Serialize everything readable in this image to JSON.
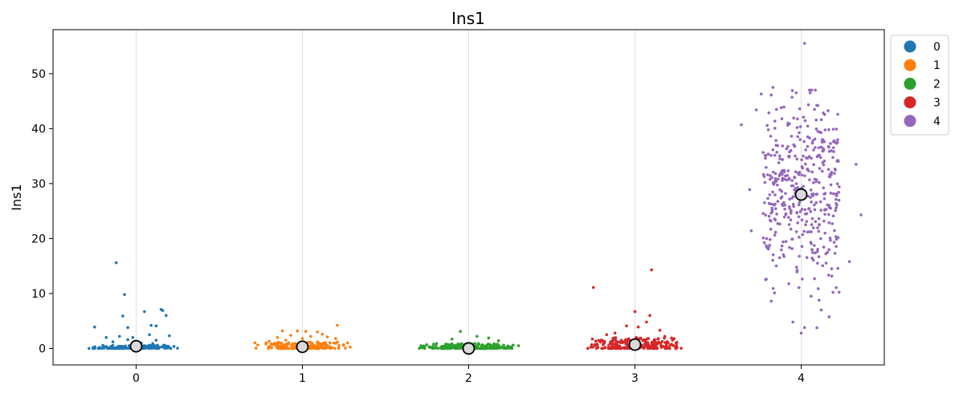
{
  "chart_data": {
    "type": "scatter",
    "title": "Ins1",
    "xlabel": "",
    "ylabel": "Ins1",
    "categories": [
      "0",
      "1",
      "2",
      "3",
      "4"
    ],
    "x_ticks": [
      "0",
      "1",
      "2",
      "3",
      "4"
    ],
    "y_ticks": [
      "0",
      "10",
      "20",
      "30",
      "40",
      "50"
    ],
    "ylim": [
      -3,
      58
    ],
    "xlim": [
      -0.5,
      4.5
    ],
    "grid": "vertical lines at categories",
    "legend_placement": "outside-right-top",
    "series": [
      {
        "name": "0",
        "color": "#1f77b4",
        "mean": 0.4,
        "points": [
          [
            -0.12,
            15.6
          ],
          [
            -0.07,
            9.8
          ],
          [
            -0.25,
            3.9
          ],
          [
            0.05,
            6.7
          ],
          [
            0.15,
            7.1
          ],
          [
            0.16,
            6.9
          ],
          [
            0.18,
            6.0
          ],
          [
            0.09,
            4.2
          ],
          [
            0.12,
            4.1
          ],
          [
            -0.08,
            5.9
          ],
          [
            -0.05,
            3.8
          ],
          [
            -0.18,
            2.0
          ],
          [
            -0.1,
            2.2
          ],
          [
            0.08,
            2.5
          ],
          [
            -0.02,
            2.0
          ],
          [
            0.2,
            2.3
          ],
          [
            0.12,
            1.5
          ],
          [
            -0.14,
            1.2
          ],
          [
            0.03,
            1.0
          ],
          [
            -0.05,
            1.6
          ],
          [
            0.1,
            0.9
          ]
        ],
        "cluster": {
          "n": 140,
          "spread_x": 0.33,
          "base_max": 0.6
        }
      },
      {
        "name": "1",
        "color": "#ff7f0e",
        "mean": 0.3,
        "points": [
          [
            1.21,
            4.2
          ],
          [
            0.88,
            3.2
          ],
          [
            0.97,
            3.2
          ],
          [
            1.02,
            3.1
          ],
          [
            1.09,
            3.0
          ],
          [
            1.12,
            2.6
          ],
          [
            0.93,
            2.4
          ],
          [
            1.15,
            2.1
          ],
          [
            0.85,
            2.0
          ],
          [
            1.05,
            2.2
          ],
          [
            1.2,
            1.8
          ],
          [
            0.8,
            1.3
          ],
          [
            0.9,
            1.5
          ],
          [
            1.0,
            1.8
          ]
        ],
        "cluster": {
          "n": 180,
          "spread_x": 0.3,
          "base_max": 1.2
        }
      },
      {
        "name": "2",
        "color": "#2ca02c",
        "mean": 0.0,
        "points": [
          [
            1.95,
            3.1
          ],
          [
            2.05,
            2.2
          ],
          [
            2.12,
            1.9
          ],
          [
            1.9,
            1.7
          ],
          [
            2.18,
            1.4
          ],
          [
            2.3,
            0.5
          ]
        ],
        "cluster": {
          "n": 220,
          "spread_x": 0.33,
          "base_max": 0.9
        }
      },
      {
        "name": "3",
        "color": "#d62728",
        "mean": 0.7,
        "points": [
          [
            3.1,
            14.3
          ],
          [
            2.75,
            11.1
          ],
          [
            3.09,
            6.0
          ],
          [
            3.0,
            6.7
          ],
          [
            3.07,
            4.8
          ],
          [
            2.95,
            4.1
          ],
          [
            2.83,
            2.5
          ],
          [
            3.15,
            3.3
          ],
          [
            3.02,
            3.9
          ],
          [
            2.88,
            2.8
          ],
          [
            3.18,
            2.2
          ],
          [
            3.22,
            1.9
          ]
        ],
        "cluster": {
          "n": 240,
          "spread_x": 0.3,
          "base_max": 2.0
        }
      },
      {
        "name": "4",
        "color": "#9467bd",
        "mean": 28.0,
        "points": [
          [
            4.02,
            55.5
          ],
          [
            3.83,
            47.5
          ],
          [
            3.76,
            46.3
          ],
          [
            4.1,
            44.2
          ],
          [
            3.88,
            43.8
          ],
          [
            4.08,
            43.5
          ],
          [
            4.22,
            42.6
          ],
          [
            3.73,
            43.4
          ],
          [
            3.97,
            46.5
          ],
          [
            3.64,
            40.7
          ],
          [
            4.33,
            33.5
          ],
          [
            4.36,
            24.3
          ],
          [
            4.29,
            15.8
          ],
          [
            3.69,
            28.9
          ],
          [
            3.7,
            21.4
          ],
          [
            3.79,
            12.6
          ],
          [
            3.84,
            10.1
          ],
          [
            3.82,
            8.6
          ],
          [
            4.0,
            2.8
          ],
          [
            4.02,
            3.8
          ],
          [
            3.95,
            4.8
          ],
          [
            4.06,
            9.5
          ],
          [
            4.12,
            7.0
          ]
        ],
        "cluster": {
          "n": 420,
          "spread_x": 0.23,
          "center": 28.0,
          "sd": 8.5
        }
      }
    ]
  }
}
